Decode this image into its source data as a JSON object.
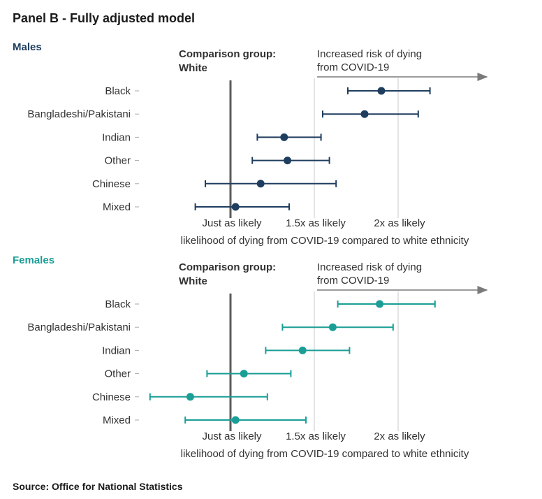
{
  "title": "Panel B - Fully adjusted model",
  "source": "Source: Office for National Statistics",
  "colors": {
    "males": "#1f3d5f",
    "females": "#1a9e96",
    "refline": "#5b5b5b",
    "grid": "#c8c8c8",
    "arrow": "#7a7a7a"
  },
  "chart_data": [
    {
      "type": "forest",
      "panel": "Males",
      "comparison_label_1": "Comparison group:",
      "comparison_label_2": "White",
      "risk_label_1": "Increased risk of dying",
      "risk_label_2": "from COVID-19",
      "xlabel": "likelihood of dying from COVID-19 compared to white ethnicity",
      "xticks": [
        {
          "value": 1.0,
          "label": "Just as likely"
        },
        {
          "value": 1.5,
          "label": "1.5x as likely"
        },
        {
          "value": 2.0,
          "label": "2x as likely"
        }
      ],
      "xlim": [
        0.45,
        2.5
      ],
      "categories": [
        "Black",
        "Bangladeshi/Pakistani",
        "Indian",
        "Other",
        "Chinese",
        "Mixed"
      ],
      "estimate": [
        1.9,
        1.8,
        1.32,
        1.34,
        1.18,
        1.03
      ],
      "lower": [
        1.7,
        1.55,
        1.16,
        1.13,
        0.85,
        0.79
      ],
      "upper": [
        2.19,
        2.12,
        1.54,
        1.59,
        1.63,
        1.35
      ]
    },
    {
      "type": "forest",
      "panel": "Females",
      "comparison_label_1": "Comparison group:",
      "comparison_label_2": "White",
      "risk_label_1": "Increased risk of dying",
      "risk_label_2": "from COVID-19",
      "xlabel": "likelihood of dying from COVID-19 compared to white ethnicity",
      "xticks": [
        {
          "value": 1.0,
          "label": "Just as likely"
        },
        {
          "value": 1.5,
          "label": "1.5x as likely"
        },
        {
          "value": 2.0,
          "label": "2x as likely"
        }
      ],
      "xlim": [
        0.45,
        2.5
      ],
      "categories": [
        "Black",
        "Bangladeshi/Pakistani",
        "Indian",
        "Other",
        "Chinese",
        "Mixed"
      ],
      "estimate": [
        1.89,
        1.61,
        1.43,
        1.08,
        0.76,
        1.03
      ],
      "lower": [
        1.64,
        1.31,
        1.21,
        0.86,
        0.52,
        0.73
      ],
      "upper": [
        2.22,
        1.97,
        1.71,
        1.36,
        1.22,
        1.45
      ]
    }
  ]
}
